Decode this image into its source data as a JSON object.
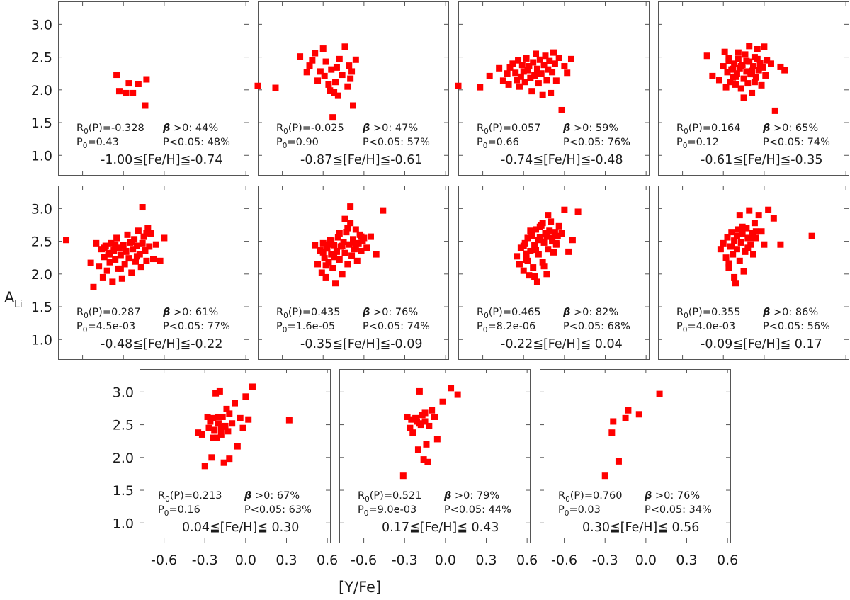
{
  "chart_data": {
    "type": "scatter",
    "xlabel": "[Y/Fe]",
    "ylabel": "A",
    "ylabel_sub": "Li",
    "xlim": [
      -0.78,
      0.62
    ],
    "ylim": [
      0.7,
      3.35
    ],
    "x_ticks": [
      -0.6,
      -0.3,
      0.0,
      0.3,
      0.6
    ],
    "x_tick_labels": [
      "-0.6",
      "-0.3",
      "0.0",
      "0.3",
      "0.6"
    ],
    "y_ticks": [
      1.0,
      1.5,
      2.0,
      2.5,
      3.0
    ],
    "y_tick_labels": [
      "1.0",
      "1.5",
      "2.0",
      "2.5",
      "3.0"
    ],
    "marker": "filled-square",
    "color": "#ff0000",
    "panels": [
      {
        "range_label": "-1.00≦[Fe/H]≦-0.74",
        "stat_r": "R",
        "stat_r_sub": "0",
        "stat_r_val": "(P)=-0.328",
        "stat_p": "P",
        "stat_p_sub": "0",
        "stat_p_val": "=0.43",
        "beta_label": "β >0: 44%",
        "pval_label": "P<0.05: 48%",
        "x": [
          -0.35,
          -0.33,
          -0.28,
          -0.26,
          -0.23,
          -0.19,
          -0.14,
          -0.13
        ],
        "y": [
          2.23,
          1.98,
          1.95,
          2.1,
          1.95,
          2.09,
          1.76,
          2.16
        ]
      },
      {
        "range_label": "-0.87≦[Fe/H]≦-0.61",
        "stat_r": "R",
        "stat_r_sub": "0",
        "stat_r_val": "(P)=-0.025",
        "stat_p": "P",
        "stat_p_sub": "0",
        "stat_p_val": "=0.90",
        "beta_label": "β >0: 47%",
        "pval_label": "P<0.05: 57%",
        "x": [
          -0.78,
          -0.65,
          -0.47,
          -0.42,
          -0.4,
          -0.38,
          -0.36,
          -0.34,
          -0.32,
          -0.3,
          -0.29,
          -0.28,
          -0.26,
          -0.25,
          -0.24,
          -0.23,
          -0.22,
          -0.21,
          -0.2,
          -0.19,
          -0.18,
          -0.16,
          -0.14,
          -0.12,
          -0.11,
          -0.1,
          -0.09,
          -0.08,
          -0.06
        ],
        "y": [
          2.06,
          2.03,
          2.51,
          2.27,
          2.37,
          2.45,
          2.56,
          2.14,
          2.28,
          2.63,
          2.21,
          2.43,
          2.08,
          1.99,
          2.31,
          1.58,
          1.96,
          2.12,
          2.34,
          1.91,
          2.47,
          2.23,
          2.66,
          2.05,
          2.37,
          2.17,
          2.28,
          1.76,
          2.46
        ]
      },
      {
        "range_label": "-0.74≦[Fe/H]≦-0.48",
        "stat_r": "R",
        "stat_r_sub": "0",
        "stat_r_val": "(P)=0.057",
        "stat_p": "P",
        "stat_p_sub": "0",
        "stat_p_val": "=0.66",
        "beta_label": "β >0: 59%",
        "pval_label": "P<0.05: 76%",
        "x": [
          -0.78,
          -0.62,
          -0.55,
          -0.48,
          -0.45,
          -0.42,
          -0.41,
          -0.4,
          -0.38,
          -0.36,
          -0.35,
          -0.34,
          -0.33,
          -0.32,
          -0.31,
          -0.3,
          -0.29,
          -0.28,
          -0.27,
          -0.26,
          -0.25,
          -0.24,
          -0.23,
          -0.22,
          -0.21,
          -0.2,
          -0.19,
          -0.18,
          -0.17,
          -0.16,
          -0.15,
          -0.14,
          -0.13,
          -0.12,
          -0.11,
          -0.1,
          -0.09,
          -0.08,
          -0.07,
          -0.06,
          -0.04,
          -0.02,
          0.0,
          0.02,
          0.05
        ],
        "y": [
          2.06,
          2.04,
          2.21,
          2.33,
          2.14,
          2.25,
          2.08,
          2.34,
          2.4,
          2.26,
          2.15,
          2.45,
          2.05,
          2.2,
          2.38,
          2.28,
          2.12,
          2.48,
          2.3,
          2.36,
          2.18,
          1.98,
          2.42,
          2.22,
          2.55,
          2.32,
          2.1,
          2.46,
          2.25,
          1.92,
          2.38,
          2.52,
          2.15,
          2.31,
          2.44,
          1.95,
          2.27,
          2.57,
          2.4,
          2.14,
          2.49,
          1.69,
          2.36,
          2.26,
          2.47
        ]
      },
      {
        "range_label": "-0.61≦[Fe/H]≦-0.35",
        "stat_r": "R",
        "stat_r_sub": "0",
        "stat_r_val": "(P)=0.164",
        "stat_p": "P",
        "stat_p_sub": "0",
        "stat_p_val": "=0.12",
        "beta_label": "β >0: 65%",
        "pval_label": "P<0.05: 74%",
        "x": [
          -0.42,
          -0.38,
          -0.33,
          -0.3,
          -0.28,
          -0.27,
          -0.26,
          -0.25,
          -0.24,
          -0.23,
          -0.22,
          -0.21,
          -0.2,
          -0.19,
          -0.18,
          -0.17,
          -0.16,
          -0.15,
          -0.14,
          -0.13,
          -0.12,
          -0.11,
          -0.1,
          -0.09,
          -0.08,
          -0.07,
          -0.06,
          -0.05,
          -0.04,
          -0.03,
          -0.02,
          -0.01,
          0.0,
          0.01,
          0.02,
          -0.29,
          -0.26,
          -0.23,
          -0.21,
          -0.19,
          -0.17,
          -0.15,
          -0.13,
          -0.11,
          -0.09,
          -0.07,
          -0.05,
          -0.03,
          0.05,
          0.08,
          0.12,
          0.15
        ],
        "y": [
          2.52,
          2.21,
          2.15,
          2.36,
          2.04,
          2.27,
          2.44,
          2.12,
          2.31,
          2.19,
          2.4,
          2.08,
          2.25,
          2.47,
          2.33,
          2.02,
          2.38,
          2.17,
          2.54,
          2.28,
          2.1,
          2.43,
          2.24,
          1.95,
          2.36,
          2.5,
          2.19,
          2.62,
          2.3,
          2.41,
          2.07,
          2.34,
          2.66,
          2.22,
          2.45,
          2.58,
          2.48,
          2.32,
          2.2,
          2.57,
          2.36,
          1.88,
          2.44,
          2.67,
          2.29,
          2.12,
          2.47,
          2.38,
          2.4,
          1.68,
          2.35,
          2.3
        ]
      },
      {
        "range_label": "-0.48≦[Fe/H]≦-0.22",
        "stat_r": "R",
        "stat_r_sub": "0",
        "stat_r_val": "(P)=0.287",
        "stat_p": "P",
        "stat_p_sub": "0",
        "stat_p_val": "=4.5e-03",
        "beta_label": "β >0: 61%",
        "pval_label": "P<0.05: 77%",
        "x": [
          -0.72,
          -0.54,
          -0.52,
          -0.5,
          -0.48,
          -0.46,
          -0.45,
          -0.44,
          -0.43,
          -0.42,
          -0.41,
          -0.4,
          -0.39,
          -0.38,
          -0.37,
          -0.36,
          -0.35,
          -0.34,
          -0.33,
          -0.32,
          -0.31,
          -0.3,
          -0.29,
          -0.28,
          -0.27,
          -0.26,
          -0.25,
          -0.24,
          -0.23,
          -0.22,
          -0.21,
          -0.2,
          -0.19,
          -0.18,
          -0.17,
          -0.16,
          -0.15,
          -0.14,
          -0.13,
          -0.12,
          -0.11,
          -0.1,
          -0.08,
          -0.06,
          -0.03,
          0.0,
          -0.44,
          -0.4,
          -0.36,
          -0.32,
          -0.28,
          -0.24,
          -0.2,
          -0.16,
          -0.13
        ],
        "y": [
          2.52,
          2.17,
          1.8,
          2.47,
          2.12,
          2.38,
          1.95,
          2.26,
          2.43,
          2.05,
          2.32,
          2.18,
          2.47,
          1.88,
          2.36,
          2.22,
          2.55,
          2.08,
          2.4,
          2.29,
          1.93,
          2.44,
          2.15,
          2.35,
          2.6,
          2.24,
          2.48,
          2.02,
          2.38,
          2.53,
          2.19,
          2.43,
          2.66,
          2.3,
          2.11,
          2.47,
          2.57,
          2.36,
          2.2,
          2.7,
          2.42,
          2.62,
          2.23,
          2.45,
          2.2,
          2.55,
          2.4,
          2.3,
          2.45,
          2.08,
          2.34,
          2.49,
          2.27,
          3.02,
          2.63
        ]
      },
      {
        "range_label": "-0.35≦[Fe/H]≦-0.09",
        "stat_r": "R",
        "stat_r_sub": "0",
        "stat_r_val": "(P)=0.435",
        "stat_p": "P",
        "stat_p_sub": "0",
        "stat_p_val": "=1.6e-05",
        "beta_label": "β >0: 76%",
        "pval_label": "P<0.05: 74%",
        "x": [
          -0.36,
          -0.34,
          -0.32,
          -0.31,
          -0.3,
          -0.29,
          -0.28,
          -0.27,
          -0.26,
          -0.25,
          -0.24,
          -0.23,
          -0.22,
          -0.21,
          -0.2,
          -0.19,
          -0.18,
          -0.17,
          -0.16,
          -0.15,
          -0.14,
          -0.13,
          -0.12,
          -0.11,
          -0.1,
          -0.09,
          -0.08,
          -0.07,
          -0.06,
          -0.05,
          -0.04,
          -0.03,
          -0.02,
          -0.01,
          0.0,
          0.02,
          0.05,
          0.09,
          0.14,
          -0.3,
          -0.26,
          -0.22,
          -0.18,
          -0.14,
          -0.1,
          -0.06,
          -0.02,
          -0.28,
          -0.24,
          -0.2,
          -0.16,
          -0.12,
          -0.08
        ],
        "y": [
          2.44,
          2.15,
          2.36,
          2.02,
          2.47,
          2.24,
          1.95,
          2.39,
          2.18,
          2.52,
          2.3,
          2.09,
          2.44,
          1.86,
          2.35,
          2.56,
          2.22,
          2.42,
          2.0,
          2.49,
          2.32,
          2.64,
          2.15,
          2.45,
          2.78,
          2.28,
          2.53,
          2.38,
          2.68,
          2.2,
          2.47,
          2.6,
          2.35,
          2.5,
          2.55,
          2.4,
          2.57,
          2.3,
          2.97,
          2.33,
          2.45,
          2.26,
          2.62,
          2.84,
          3.03,
          2.41,
          2.57,
          2.13,
          2.51,
          2.34,
          2.43,
          2.7,
          2.48
        ]
      },
      {
        "range_label": "-0.22≦[Fe/H]≦ 0.04",
        "stat_r": "R",
        "stat_r_sub": "0",
        "stat_r_val": "(P)=0.465",
        "stat_p": "P",
        "stat_p_sub": "0",
        "stat_p_val": "=8.2e-06",
        "beta_label": "β >0: 82%",
        "pval_label": "P<0.05: 68%",
        "x": [
          -0.35,
          -0.33,
          -0.32,
          -0.3,
          -0.29,
          -0.28,
          -0.27,
          -0.26,
          -0.25,
          -0.24,
          -0.23,
          -0.22,
          -0.21,
          -0.2,
          -0.19,
          -0.18,
          -0.17,
          -0.16,
          -0.15,
          -0.14,
          -0.13,
          -0.12,
          -0.11,
          -0.1,
          -0.09,
          -0.08,
          -0.07,
          -0.06,
          -0.05,
          -0.04,
          -0.02,
          0.0,
          0.03,
          0.06,
          0.1,
          -0.3,
          -0.27,
          -0.24,
          -0.21,
          -0.18,
          -0.15,
          -0.12,
          -0.09,
          -0.06,
          -0.28,
          -0.25,
          -0.22,
          -0.19,
          -0.16,
          -0.13
        ],
        "y": [
          2.27,
          2.15,
          2.4,
          2.05,
          2.47,
          2.22,
          2.55,
          1.98,
          2.35,
          2.62,
          2.1,
          2.44,
          2.68,
          1.88,
          2.3,
          2.56,
          2.74,
          2.18,
          2.48,
          2.62,
          2.0,
          2.38,
          2.66,
          2.8,
          2.55,
          2.33,
          2.64,
          2.47,
          2.58,
          2.73,
          2.62,
          2.98,
          2.34,
          2.52,
          2.95,
          2.43,
          2.2,
          2.58,
          2.37,
          2.72,
          2.12,
          2.9,
          2.5,
          2.45,
          2.31,
          2.66,
          1.96,
          2.52,
          2.78,
          2.57
        ]
      },
      {
        "range_label": "-0.09≦[Fe/H]≦ 0.17",
        "stat_r": "R",
        "stat_r_sub": "0",
        "stat_r_val": "(P)=0.355",
        "stat_p": "P",
        "stat_p_sub": "0",
        "stat_p_val": "=4.0e-03",
        "beta_label": "β >0: 86%",
        "pval_label": "P<0.05: 56%",
        "x": [
          -0.32,
          -0.3,
          -0.28,
          -0.27,
          -0.26,
          -0.25,
          -0.24,
          -0.23,
          -0.22,
          -0.21,
          -0.2,
          -0.19,
          -0.18,
          -0.17,
          -0.16,
          -0.15,
          -0.14,
          -0.13,
          -0.12,
          -0.11,
          -0.1,
          -0.09,
          -0.08,
          -0.07,
          -0.06,
          -0.04,
          -0.02,
          0.0,
          0.03,
          0.07,
          0.12,
          0.35,
          -0.26,
          -0.22,
          -0.18,
          -0.14,
          -0.1,
          -0.06,
          -0.24,
          -0.2,
          -0.16,
          -0.12,
          -0.08
        ],
        "y": [
          2.38,
          2.47,
          2.25,
          2.56,
          2.1,
          2.42,
          2.64,
          2.3,
          2.51,
          1.86,
          2.38,
          2.68,
          2.2,
          2.48,
          2.62,
          2.04,
          2.35,
          2.7,
          2.55,
          2.97,
          2.45,
          2.62,
          2.3,
          2.78,
          2.55,
          2.9,
          2.65,
          2.45,
          2.98,
          2.85,
          2.45,
          2.58,
          2.16,
          1.95,
          2.9,
          2.34,
          2.55,
          2.65,
          2.42,
          2.58,
          2.72,
          2.4,
          2.6
        ]
      },
      {
        "range_label": "0.04≦[Fe/H]≦ 0.30",
        "stat_r": "R",
        "stat_r_sub": "0",
        "stat_r_val": "(P)=0.213",
        "stat_p": "P",
        "stat_p_sub": "0",
        "stat_p_val": "=0.16",
        "beta_label": "β >0: 67%",
        "pval_label": "P<0.05: 63%",
        "x": [
          -0.35,
          -0.32,
          -0.3,
          -0.28,
          -0.27,
          -0.26,
          -0.25,
          -0.24,
          -0.23,
          -0.22,
          -0.21,
          -0.2,
          -0.19,
          -0.18,
          -0.17,
          -0.16,
          -0.15,
          -0.14,
          -0.13,
          -0.12,
          -0.1,
          -0.08,
          -0.06,
          -0.04,
          -0.02,
          0.0,
          0.02,
          0.05,
          0.32,
          -0.24,
          -0.2,
          -0.16,
          -0.12,
          -0.18
        ],
        "y": [
          2.38,
          2.35,
          1.87,
          2.62,
          2.45,
          2.55,
          2.0,
          2.6,
          2.42,
          2.98,
          2.3,
          2.52,
          3.01,
          2.45,
          2.62,
          1.92,
          2.48,
          2.74,
          2.4,
          1.98,
          2.52,
          2.83,
          2.17,
          2.6,
          2.45,
          2.93,
          2.58,
          3.08,
          2.57,
          2.3,
          2.62,
          2.47,
          2.67,
          2.35
        ]
      },
      {
        "range_label": "0.17≦[Fe/H]≦ 0.43",
        "stat_r": "R",
        "stat_r_sub": "0",
        "stat_r_val": "(P)=0.521",
        "stat_p": "P",
        "stat_p_sub": "0",
        "stat_p_val": "=9.0e-03",
        "beta_label": "β >0: 79%",
        "pval_label": "P<0.05: 44%",
        "x": [
          -0.31,
          -0.28,
          -0.26,
          -0.24,
          -0.22,
          -0.21,
          -0.2,
          -0.19,
          -0.18,
          -0.17,
          -0.16,
          -0.15,
          -0.14,
          -0.13,
          -0.12,
          -0.1,
          -0.08,
          -0.06,
          -0.02,
          0.04,
          0.09,
          -0.25,
          -0.19,
          -0.15
        ],
        "y": [
          1.72,
          2.62,
          2.45,
          2.38,
          2.6,
          2.55,
          2.12,
          3.01,
          2.5,
          2.65,
          1.97,
          2.55,
          2.2,
          1.93,
          2.48,
          2.72,
          2.62,
          2.28,
          2.85,
          3.06,
          2.96,
          2.58,
          2.52,
          2.68
        ]
      },
      {
        "range_label": "0.30≦[Fe/H]≦ 0.56",
        "stat_r": "R",
        "stat_r_sub": "0",
        "stat_r_val": "(P)=0.760",
        "stat_p": "P",
        "stat_p_sub": "0",
        "stat_p_val": "=0.03",
        "beta_label": "β >0: 76%",
        "pval_label": "P<0.05: 34%",
        "x": [
          -0.3,
          -0.25,
          -0.24,
          -0.2,
          -0.15,
          -0.13,
          -0.05,
          0.1
        ],
        "y": [
          1.72,
          2.38,
          2.55,
          1.94,
          2.6,
          2.72,
          2.66,
          2.97
        ]
      }
    ]
  }
}
